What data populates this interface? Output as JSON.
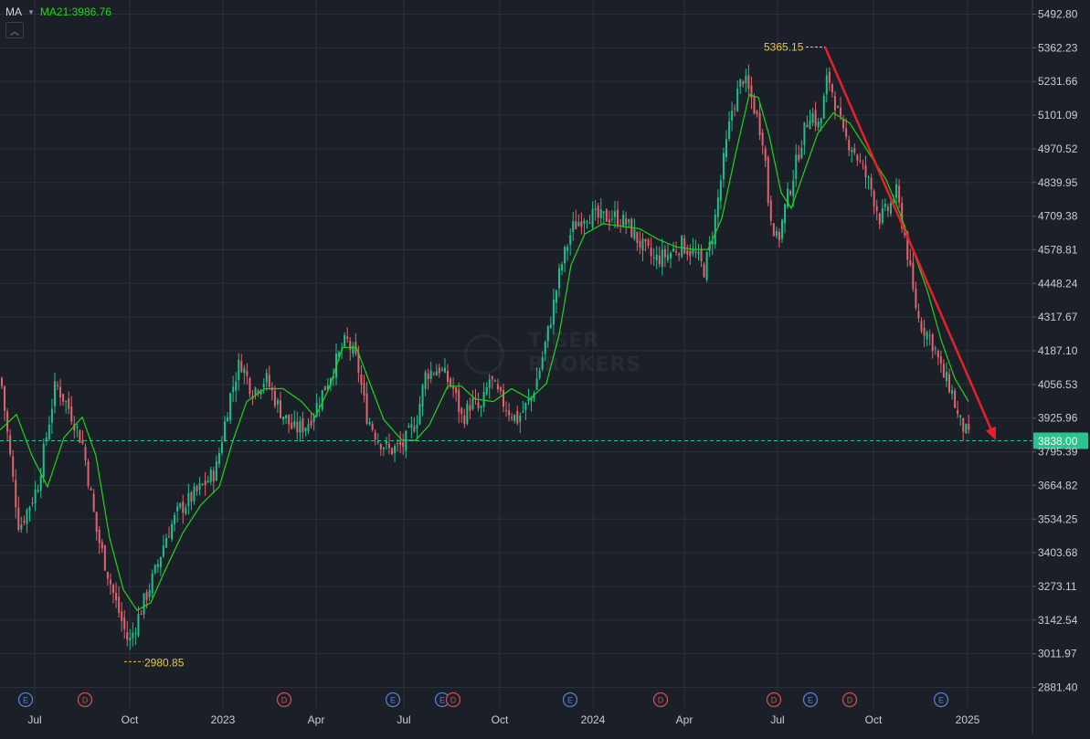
{
  "indicator": {
    "label": "MA",
    "ma_text": "MA21:3986.76",
    "colors": {
      "ma": "#21d31a",
      "up": "#1fbf86",
      "down": "#e2636f",
      "arrow": "#e8202b"
    }
  },
  "watermark": {
    "line1": "TIGER",
    "line2": "BROKERS"
  },
  "chart_data": {
    "type": "candlestick",
    "grid": true,
    "y_range": [
      2830,
      5535
    ],
    "y_ticks": [
      "5492.80",
      "5362.23",
      "5231.66",
      "5101.09",
      "4970.52",
      "4839.95",
      "4709.38",
      "4578.81",
      "4448.24",
      "4317.67",
      "4187.10",
      "4056.53",
      "3925.96",
      "3795.39",
      "3664.82",
      "3534.25",
      "3403.68",
      "3273.11",
      "3142.54",
      "3011.97",
      "2881.40"
    ],
    "x_labels": [
      "Jul",
      "Oct",
      "2023",
      "Apr",
      "Jul",
      "Oct",
      "2024",
      "Apr",
      "Jul",
      "Oct",
      "2025"
    ],
    "current_price": "3838.00",
    "high_marker": {
      "label": "5365.15",
      "value": 5365.15
    },
    "low_marker": {
      "label": "2980.85",
      "value": 2980.85
    },
    "events": [
      "E",
      "D",
      "D",
      "E",
      "E",
      "D",
      "E",
      "D",
      "D",
      "E",
      "D",
      "E"
    ],
    "close_anchors": [
      [
        0,
        4080
      ],
      [
        12,
        3720
      ],
      [
        20,
        3500
      ],
      [
        40,
        3660
      ],
      [
        60,
        4060
      ],
      [
        75,
        3960
      ],
      [
        90,
        3820
      ],
      [
        105,
        3480
      ],
      [
        125,
        3220
      ],
      [
        140,
        3050
      ],
      [
        155,
        3200
      ],
      [
        170,
        3340
      ],
      [
        180,
        3460
      ],
      [
        195,
        3570
      ],
      [
        215,
        3640
      ],
      [
        235,
        3720
      ],
      [
        250,
        4000
      ],
      [
        262,
        4150
      ],
      [
        275,
        4030
      ],
      [
        290,
        4080
      ],
      [
        305,
        3960
      ],
      [
        320,
        3880
      ],
      [
        335,
        3900
      ],
      [
        345,
        3970
      ],
      [
        360,
        4090
      ],
      [
        378,
        4230
      ],
      [
        390,
        4140
      ],
      [
        400,
        3940
      ],
      [
        412,
        3850
      ],
      [
        425,
        3800
      ],
      [
        440,
        3820
      ],
      [
        455,
        3920
      ],
      [
        465,
        4100
      ],
      [
        480,
        4120
      ],
      [
        495,
        4040
      ],
      [
        505,
        3920
      ],
      [
        515,
        3990
      ],
      [
        525,
        3950
      ],
      [
        535,
        4080
      ],
      [
        545,
        4010
      ],
      [
        555,
        3960
      ],
      [
        565,
        3920
      ],
      [
        580,
        4000
      ],
      [
        590,
        4120
      ],
      [
        600,
        4280
      ],
      [
        612,
        4500
      ],
      [
        625,
        4660
      ],
      [
        640,
        4720
      ],
      [
        655,
        4700
      ],
      [
        670,
        4710
      ],
      [
        685,
        4680
      ],
      [
        700,
        4600
      ],
      [
        715,
        4540
      ],
      [
        730,
        4560
      ],
      [
        745,
        4600
      ],
      [
        760,
        4560
      ],
      [
        770,
        4500
      ],
      [
        780,
        4660
      ],
      [
        790,
        4900
      ],
      [
        800,
        5120
      ],
      [
        812,
        5250
      ],
      [
        822,
        5160
      ],
      [
        835,
        5000
      ],
      [
        840,
        4760
      ],
      [
        850,
        4600
      ],
      [
        858,
        4740
      ],
      [
        866,
        4850
      ],
      [
        876,
        5000
      ],
      [
        886,
        5120
      ],
      [
        896,
        5050
      ],
      [
        905,
        5260
      ],
      [
        914,
        5140
      ],
      [
        922,
        5020
      ],
      [
        932,
        4980
      ],
      [
        942,
        4900
      ],
      [
        952,
        4820
      ],
      [
        962,
        4700
      ],
      [
        972,
        4740
      ],
      [
        980,
        4800
      ],
      [
        990,
        4620
      ],
      [
        998,
        4420
      ],
      [
        1005,
        4300
      ],
      [
        1015,
        4250
      ],
      [
        1022,
        4200
      ],
      [
        1030,
        4100
      ],
      [
        1040,
        4040
      ],
      [
        1048,
        3920
      ],
      [
        1055,
        3880
      ],
      [
        1061,
        3838
      ]
    ],
    "ma_anchors": [
      [
        0,
        3880
      ],
      [
        18,
        3940
      ],
      [
        35,
        3780
      ],
      [
        52,
        3660
      ],
      [
        70,
        3850
      ],
      [
        90,
        3930
      ],
      [
        105,
        3780
      ],
      [
        120,
        3460
      ],
      [
        135,
        3260
      ],
      [
        150,
        3180
      ],
      [
        165,
        3210
      ],
      [
        180,
        3330
      ],
      [
        200,
        3480
      ],
      [
        220,
        3590
      ],
      [
        240,
        3660
      ],
      [
        255,
        3840
      ],
      [
        270,
        3990
      ],
      [
        290,
        4040
      ],
      [
        310,
        4040
      ],
      [
        330,
        3990
      ],
      [
        345,
        3930
      ],
      [
        360,
        4040
      ],
      [
        375,
        4200
      ],
      [
        390,
        4200
      ],
      [
        405,
        4060
      ],
      [
        420,
        3920
      ],
      [
        440,
        3840
      ],
      [
        455,
        3840
      ],
      [
        470,
        3900
      ],
      [
        490,
        4050
      ],
      [
        505,
        4050
      ],
      [
        520,
        4000
      ],
      [
        540,
        3990
      ],
      [
        560,
        4040
      ],
      [
        580,
        4000
      ],
      [
        598,
        4060
      ],
      [
        612,
        4250
      ],
      [
        625,
        4520
      ],
      [
        640,
        4640
      ],
      [
        660,
        4680
      ],
      [
        680,
        4670
      ],
      [
        700,
        4660
      ],
      [
        720,
        4620
      ],
      [
        740,
        4590
      ],
      [
        760,
        4580
      ],
      [
        775,
        4580
      ],
      [
        790,
        4700
      ],
      [
        805,
        4950
      ],
      [
        820,
        5180
      ],
      [
        830,
        5170
      ],
      [
        842,
        5020
      ],
      [
        855,
        4800
      ],
      [
        866,
        4740
      ],
      [
        880,
        4880
      ],
      [
        895,
        5030
      ],
      [
        912,
        5110
      ],
      [
        930,
        5070
      ],
      [
        950,
        4960
      ],
      [
        970,
        4850
      ],
      [
        985,
        4720
      ],
      [
        1000,
        4570
      ],
      [
        1015,
        4420
      ],
      [
        1030,
        4230
      ],
      [
        1045,
        4080
      ],
      [
        1060,
        3990
      ]
    ],
    "trend_arrow": {
      "from": [
        903,
        5365.15
      ],
      "to": [
        1090,
        3840
      ]
    }
  }
}
